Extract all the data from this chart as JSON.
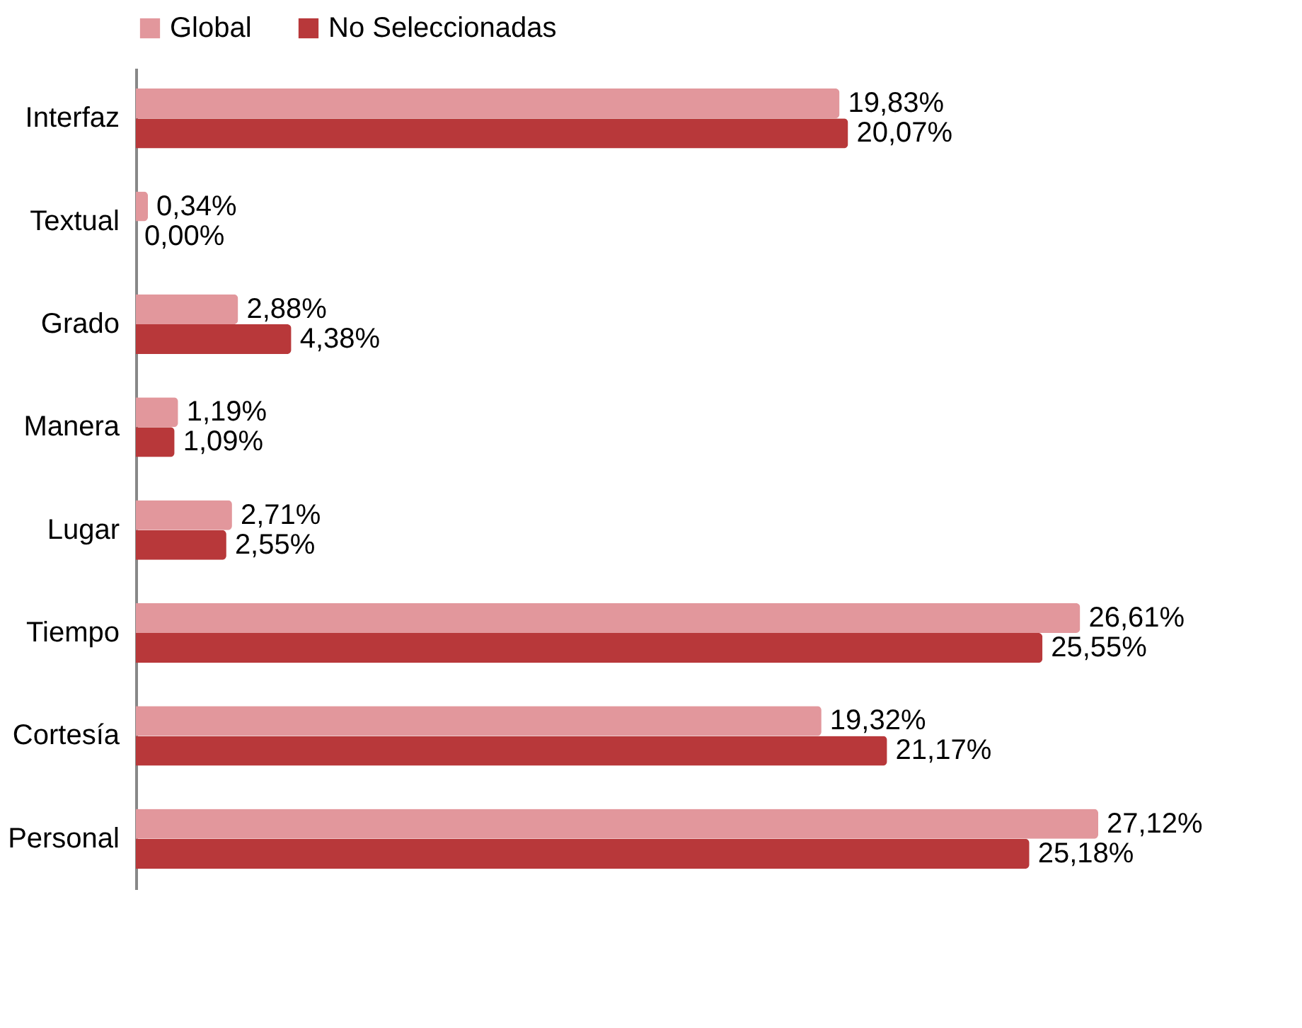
{
  "chart_data": {
    "type": "bar",
    "orientation": "horizontal",
    "legend": "top",
    "categories": [
      "Interfaz",
      "Textual",
      "Grado",
      "Manera",
      "Lugar",
      "Tiempo",
      "Cortesía",
      "Personal"
    ],
    "series": [
      {
        "name": "Global",
        "color": "#e2979c",
        "values": [
          19.83,
          0.34,
          2.88,
          1.19,
          2.71,
          26.61,
          19.32,
          27.12
        ],
        "value_labels": [
          "19,83%",
          "0,34%",
          "2,88%",
          "1,19%",
          "2,71%",
          "26,61%",
          "19,32%",
          "27,12%"
        ]
      },
      {
        "name": "No Seleccionadas",
        "color": "#b8383a",
        "values": [
          20.07,
          0.0,
          4.38,
          1.09,
          2.55,
          25.55,
          21.17,
          25.18
        ],
        "value_labels": [
          "20,07%",
          "0,00%",
          "4,38%",
          "1,09%",
          "2,55%",
          "25,55%",
          "21,17%",
          "25,18%"
        ]
      }
    ]
  }
}
